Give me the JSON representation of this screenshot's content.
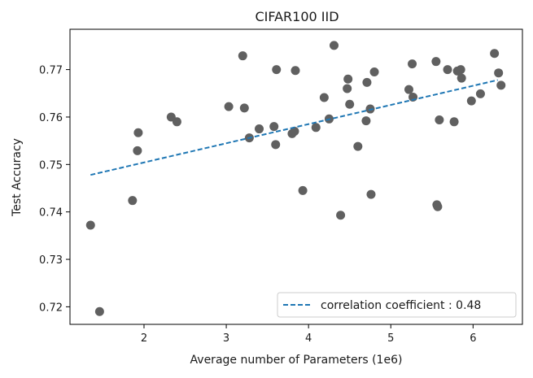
{
  "chart_data": {
    "type": "scatter",
    "title": "CIFAR100 IID",
    "xlabel": "Average number of Parameters (1e6)",
    "ylabel": "Test Accuracy",
    "xlim": [
      1.1,
      6.6
    ],
    "ylim": [
      0.7163,
      0.7785
    ],
    "xticks": [
      2,
      3,
      4,
      5,
      6
    ],
    "yticks": [
      0.72,
      0.73,
      0.74,
      0.75,
      0.76,
      0.77
    ],
    "xtick_labels": [
      "2",
      "3",
      "4",
      "5",
      "6"
    ],
    "ytick_labels": [
      "0.72",
      "0.73",
      "0.74",
      "0.75",
      "0.76",
      "0.77"
    ],
    "grid": false,
    "legend_position": "lower right",
    "colors": {
      "points": "#606060",
      "trend": "#1f77b4"
    },
    "series": [
      {
        "x": [
          1.35,
          1.46,
          1.86,
          1.92,
          1.93,
          2.33,
          2.4,
          3.03,
          3.2,
          3.22,
          3.28,
          3.4,
          3.58,
          3.6,
          3.61,
          3.8,
          3.83,
          3.84,
          3.93,
          4.09,
          4.19,
          4.25,
          4.31,
          4.39,
          4.47,
          4.48,
          4.5,
          4.6,
          4.7,
          4.71,
          4.75,
          4.76,
          4.8,
          5.22,
          5.26,
          5.27,
          5.55,
          5.56,
          5.57,
          5.59,
          5.69,
          5.77,
          5.81,
          5.85,
          5.86,
          5.98,
          6.09,
          6.26,
          6.31,
          6.34
        ],
        "y": [
          0.7372,
          0.719,
          0.7424,
          0.7529,
          0.7567,
          0.76,
          0.759,
          0.7622,
          0.7729,
          0.7619,
          0.7556,
          0.7575,
          0.758,
          0.7542,
          0.77,
          0.7565,
          0.757,
          0.7698,
          0.7445,
          0.7578,
          0.7641,
          0.7596,
          0.7751,
          0.7393,
          0.766,
          0.768,
          0.7627,
          0.7538,
          0.7592,
          0.7673,
          0.7617,
          0.7437,
          0.7695,
          0.7658,
          0.7712,
          0.7642,
          0.7717,
          0.7415,
          0.7411,
          0.7594,
          0.77,
          0.759,
          0.7697,
          0.77,
          0.7682,
          0.7634,
          0.7649,
          0.7734,
          0.7693,
          0.7667
        ]
      },
      {
        "name": "correlation coefficient : 0.48",
        "type": "line",
        "style": "dashed",
        "x": [
          1.35,
          6.3
        ],
        "y": [
          0.7478,
          0.7678
        ]
      }
    ]
  }
}
